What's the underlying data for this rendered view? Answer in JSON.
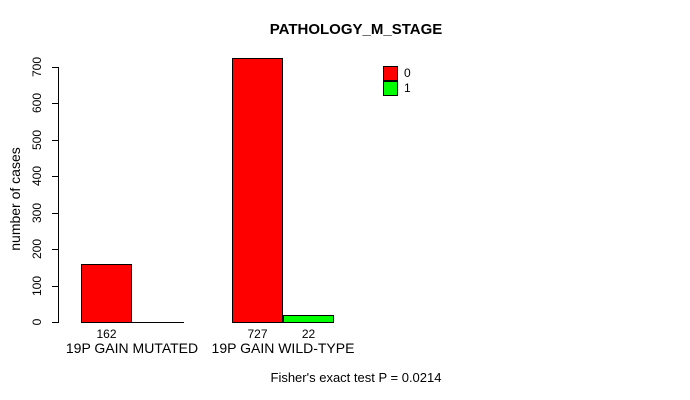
{
  "chart_data": {
    "type": "bar",
    "title": "PATHOLOGY_M_STAGE",
    "ylabel": "number of cases",
    "xlabel": "",
    "ylim": [
      0,
      700
    ],
    "yticks": [
      0,
      100,
      200,
      300,
      400,
      500,
      600,
      700
    ],
    "categories": [
      "19P GAIN MUTATED",
      "19P GAIN WILD-TYPE"
    ],
    "series": [
      {
        "name": "0",
        "color": "#FF0000",
        "values": [
          162,
          727
        ],
        "value_labels": [
          "162",
          "727"
        ]
      },
      {
        "name": "1",
        "color": "#00FF00",
        "values": [
          0,
          22
        ],
        "value_labels": [
          "",
          "22"
        ]
      }
    ],
    "grid": false,
    "legend_position": "top-right-inside",
    "footnote": "Fisher's exact test P = 0.0214"
  }
}
